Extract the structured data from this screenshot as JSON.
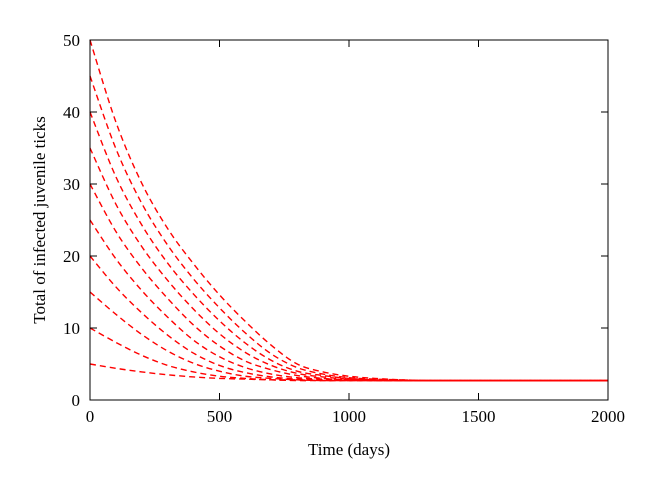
{
  "chart_data": {
    "type": "line",
    "title": "",
    "xlabel": "Time (days)",
    "ylabel": "Total of infected juvenile ticks",
    "xlim": [
      0,
      2000
    ],
    "ylim": [
      0,
      50
    ],
    "xticks": [
      0,
      500,
      1000,
      1500,
      2000
    ],
    "yticks": [
      0,
      10,
      20,
      30,
      40,
      50
    ],
    "grid": false,
    "legend": "none",
    "line_style": "dashed",
    "line_color": "#ff0000",
    "x": [
      0,
      100,
      200,
      300,
      400,
      500,
      600,
      700,
      800,
      900,
      1000,
      1100,
      1200,
      1300,
      1400,
      1500,
      1600,
      1700,
      1800,
      1900,
      2000
    ],
    "series": [
      {
        "values": [
          50,
          38.6,
          30.1,
          23.8,
          18.9,
          14.6,
          10.9,
          7.6,
          5.0,
          3.9,
          3.3,
          3.0,
          2.8,
          2.7,
          2.7,
          2.7,
          2.7,
          2.7,
          2.7,
          2.7,
          2.7
        ]
      },
      {
        "values": [
          45,
          34.9,
          27.3,
          21.5,
          16.8,
          12.8,
          9.3,
          6.4,
          4.5,
          3.6,
          3.1,
          2.9,
          2.8,
          2.7,
          2.7,
          2.7,
          2.7,
          2.7,
          2.7,
          2.7,
          2.7
        ]
      },
      {
        "values": [
          40,
          31.0,
          24.3,
          19.0,
          14.7,
          11.0,
          7.9,
          5.5,
          4.0,
          3.4,
          3.0,
          2.8,
          2.7,
          2.7,
          2.7,
          2.7,
          2.7,
          2.7,
          2.7,
          2.7,
          2.7
        ]
      },
      {
        "values": [
          35,
          27.2,
          21.3,
          16.6,
          12.6,
          9.2,
          6.6,
          4.8,
          3.7,
          3.2,
          2.9,
          2.8,
          2.7,
          2.7,
          2.7,
          2.7,
          2.7,
          2.7,
          2.7,
          2.7,
          2.7
        ]
      },
      {
        "values": [
          30,
          23.4,
          18.3,
          14.1,
          10.4,
          7.5,
          5.4,
          4.2,
          3.4,
          3.0,
          2.8,
          2.7,
          2.7,
          2.7,
          2.7,
          2.7,
          2.7,
          2.7,
          2.7,
          2.7,
          2.7
        ]
      },
      {
        "values": [
          25,
          19.6,
          15.2,
          11.5,
          8.3,
          6.0,
          4.5,
          3.6,
          3.1,
          2.9,
          2.8,
          2.7,
          2.7,
          2.7,
          2.7,
          2.7,
          2.7,
          2.7,
          2.7,
          2.7,
          2.7
        ]
      },
      {
        "values": [
          20,
          15.7,
          12.1,
          9.0,
          6.5,
          4.8,
          3.8,
          3.2,
          2.9,
          2.8,
          2.7,
          2.7,
          2.7,
          2.7,
          2.7,
          2.7,
          2.7,
          2.7,
          2.7,
          2.7,
          2.7
        ]
      },
      {
        "values": [
          15,
          11.9,
          9.1,
          6.8,
          5.1,
          4.0,
          3.3,
          3.0,
          2.8,
          2.7,
          2.7,
          2.7,
          2.7,
          2.7,
          2.7,
          2.7,
          2.7,
          2.7,
          2.7,
          2.7,
          2.7
        ]
      },
      {
        "values": [
          10,
          8.0,
          6.2,
          4.8,
          3.9,
          3.3,
          3.0,
          2.8,
          2.7,
          2.7,
          2.7,
          2.7,
          2.7,
          2.7,
          2.7,
          2.7,
          2.7,
          2.7,
          2.7,
          2.7,
          2.7
        ]
      },
      {
        "values": [
          5,
          4.4,
          3.9,
          3.5,
          3.2,
          3.0,
          2.9,
          2.8,
          2.8,
          2.7,
          2.7,
          2.7,
          2.7,
          2.7,
          2.7,
          2.7,
          2.7,
          2.7,
          2.7,
          2.7,
          2.7
        ]
      }
    ]
  }
}
